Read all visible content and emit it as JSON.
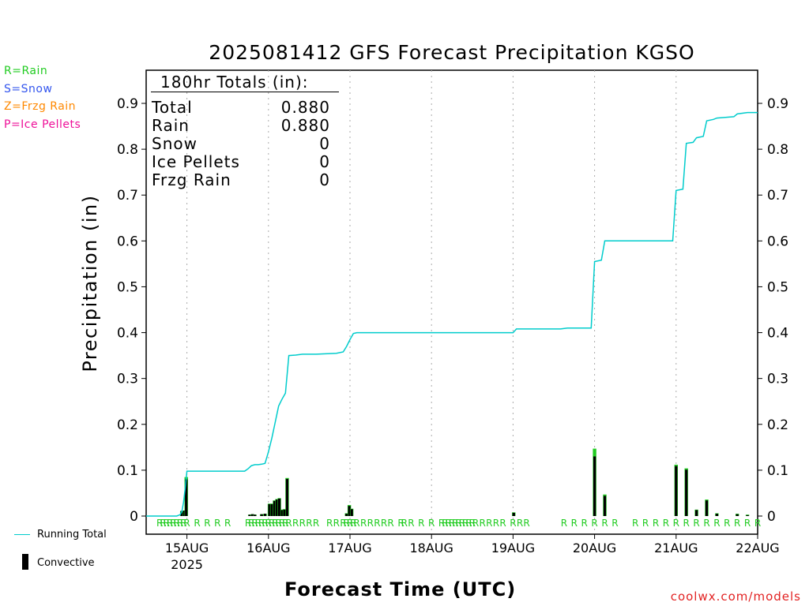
{
  "title": "2025081412 GFS Forecast Precipitation KGSO",
  "legend_types": {
    "rain": "R=Rain",
    "snow": "S=Snow",
    "frzg": "Z=Frzg Rain",
    "ice": "P=Ice Pellets"
  },
  "totals_box": {
    "heading": "180hr Totals (in):",
    "rows": [
      {
        "label": "Total",
        "value": "0.880"
      },
      {
        "label": "Rain",
        "value": "0.880"
      },
      {
        "label": "Snow",
        "value": "0"
      },
      {
        "label": "Ice Pellets",
        "value": "0"
      },
      {
        "label": "Frzg Rain",
        "value": "0"
      }
    ]
  },
  "footer_legend": {
    "running_total": "Running Total",
    "convective": "Convective"
  },
  "xlabel": "Forecast Time (UTC)",
  "ylabel": "Precipitation (in)",
  "credit": "coolwx.com/models",
  "colors": {
    "running_total": "#00cccc",
    "rain": "#22cc22",
    "convective": "#000000",
    "grid": "#aaaaaa"
  },
  "chart_data": {
    "type": "bar",
    "title": "2025081412 GFS Forecast Precipitation KGSO",
    "xlabel": "Forecast Time (UTC)",
    "ylabel": "Precipitation (in)",
    "x_unit": "forecast hour (0 = 2025-08-14 12Z)",
    "xlim": [
      0,
      180
    ],
    "ylim": [
      -0.04,
      0.97
    ],
    "yticks": [
      0,
      0.1,
      0.2,
      0.3,
      0.4,
      0.5,
      0.6,
      0.7,
      0.8,
      0.9
    ],
    "ytick_labels": [
      "0",
      "0.1",
      "0.2",
      "0.3",
      "0.4",
      "0.5",
      "0.6",
      "0.7",
      "0.8",
      "0.9"
    ],
    "xticks": [
      {
        "hour": 12,
        "label": "15AUG",
        "sublabel": "2025"
      },
      {
        "hour": 36,
        "label": "16AUG",
        "sublabel": ""
      },
      {
        "hour": 60,
        "label": "17AUG",
        "sublabel": ""
      },
      {
        "hour": 84,
        "label": "18AUG",
        "sublabel": ""
      },
      {
        "hour": 108,
        "label": "19AUG",
        "sublabel": ""
      },
      {
        "hour": 132,
        "label": "20AUG",
        "sublabel": ""
      },
      {
        "hour": 156,
        "label": "21AUG",
        "sublabel": ""
      },
      {
        "hour": 180,
        "label": "22AUG",
        "sublabel": ""
      }
    ],
    "grid": "vertical dotted at day boundaries",
    "series": [
      {
        "name": "Running Total",
        "kind": "line",
        "points": [
          [
            0,
            0
          ],
          [
            9,
            0
          ],
          [
            10,
            0.003
          ],
          [
            10.5,
            0.01
          ],
          [
            11,
            0.03
          ],
          [
            11.5,
            0.06
          ],
          [
            12,
            0.098
          ],
          [
            29,
            0.098
          ],
          [
            30,
            0.103
          ],
          [
            31,
            0.11
          ],
          [
            32,
            0.112
          ],
          [
            33,
            0.112
          ],
          [
            34,
            0.113
          ],
          [
            35,
            0.115
          ],
          [
            36,
            0.14
          ],
          [
            37,
            0.17
          ],
          [
            38,
            0.205
          ],
          [
            39,
            0.24
          ],
          [
            40,
            0.255
          ],
          [
            41,
            0.268
          ],
          [
            42,
            0.35
          ],
          [
            44,
            0.351
          ],
          [
            46,
            0.353
          ],
          [
            50,
            0.353
          ],
          [
            56,
            0.355
          ],
          [
            58,
            0.358
          ],
          [
            59,
            0.37
          ],
          [
            60,
            0.385
          ],
          [
            61,
            0.398
          ],
          [
            62,
            0.4
          ],
          [
            108,
            0.4
          ],
          [
            109,
            0.408
          ],
          [
            122,
            0.408
          ],
          [
            124,
            0.41
          ],
          [
            131,
            0.41
          ],
          [
            132,
            0.555
          ],
          [
            134,
            0.558
          ],
          [
            135,
            0.6
          ],
          [
            155,
            0.6
          ],
          [
            156,
            0.71
          ],
          [
            158,
            0.713
          ],
          [
            159,
            0.813
          ],
          [
            161,
            0.815
          ],
          [
            162,
            0.825
          ],
          [
            164,
            0.828
          ],
          [
            165,
            0.862
          ],
          [
            167,
            0.865
          ],
          [
            168,
            0.868
          ],
          [
            173,
            0.871
          ],
          [
            174,
            0.877
          ],
          [
            177,
            0.88
          ],
          [
            180,
            0.88
          ]
        ]
      },
      {
        "name": "Convective",
        "kind": "bar",
        "bars": [
          {
            "hour": 10.5,
            "value": 0.011,
            "conv": 0.011
          },
          {
            "hour": 11.3,
            "value": 0.012,
            "conv": 0.012
          },
          {
            "hour": 11.8,
            "value": 0.085,
            "conv": 0.08
          },
          {
            "hour": 30.5,
            "value": 0.003,
            "conv": 0.003
          },
          {
            "hour": 31.3,
            "value": 0.004,
            "conv": 0.004
          },
          {
            "hour": 32.0,
            "value": 0.003,
            "conv": 0.003
          },
          {
            "hour": 34.0,
            "value": 0.004,
            "conv": 0.004
          },
          {
            "hour": 35.0,
            "value": 0.005,
            "conv": 0.005
          },
          {
            "hour": 36.3,
            "value": 0.027,
            "conv": 0.026
          },
          {
            "hour": 37.0,
            "value": 0.027,
            "conv": 0.026
          },
          {
            "hour": 37.8,
            "value": 0.034,
            "conv": 0.033
          },
          {
            "hour": 38.5,
            "value": 0.037,
            "conv": 0.036
          },
          {
            "hour": 39.2,
            "value": 0.039,
            "conv": 0.038
          },
          {
            "hour": 40.0,
            "value": 0.014,
            "conv": 0.013
          },
          {
            "hour": 40.7,
            "value": 0.015,
            "conv": 0.014
          },
          {
            "hour": 41.5,
            "value": 0.083,
            "conv": 0.081
          },
          {
            "hour": 59.0,
            "value": 0.006,
            "conv": 0.005
          },
          {
            "hour": 59.8,
            "value": 0.024,
            "conv": 0.022
          },
          {
            "hour": 60.5,
            "value": 0.016,
            "conv": 0.015
          },
          {
            "hour": 108.2,
            "value": 0.008,
            "conv": 0.007
          },
          {
            "hour": 132.0,
            "value": 0.147,
            "conv": 0.13
          },
          {
            "hour": 135.0,
            "value": 0.047,
            "conv": 0.044
          },
          {
            "hour": 156.0,
            "value": 0.112,
            "conv": 0.109
          },
          {
            "hour": 159.0,
            "value": 0.104,
            "conv": 0.101
          },
          {
            "hour": 162.0,
            "value": 0.014,
            "conv": 0.013
          },
          {
            "hour": 165.0,
            "value": 0.036,
            "conv": 0.034
          },
          {
            "hour": 168.0,
            "value": 0.006,
            "conv": 0.005
          },
          {
            "hour": 174.0,
            "value": 0.005,
            "conv": 0.004
          },
          {
            "hour": 177.0,
            "value": 0.003,
            "conv": 0.002
          }
        ]
      }
    ],
    "precip_type_codes": {
      "code": "R",
      "hours": [
        4,
        5,
        6,
        7,
        8,
        9,
        10,
        11,
        12,
        15,
        18,
        21,
        24,
        30,
        31,
        32,
        33,
        34,
        35,
        36,
        37,
        38,
        39,
        40,
        41,
        42,
        44,
        46,
        48,
        50,
        54,
        56,
        58,
        59,
        60,
        61,
        62,
        64,
        66,
        68,
        70,
        72,
        75,
        76,
        78,
        81,
        84,
        87,
        88,
        89,
        90,
        91,
        92,
        93,
        94,
        95,
        96,
        97,
        99,
        101,
        103,
        105,
        108,
        110,
        112,
        123,
        126,
        129,
        132,
        135,
        138,
        144,
        147,
        150,
        153,
        156,
        159,
        162,
        165,
        168,
        171,
        174,
        177,
        180
      ]
    }
  }
}
